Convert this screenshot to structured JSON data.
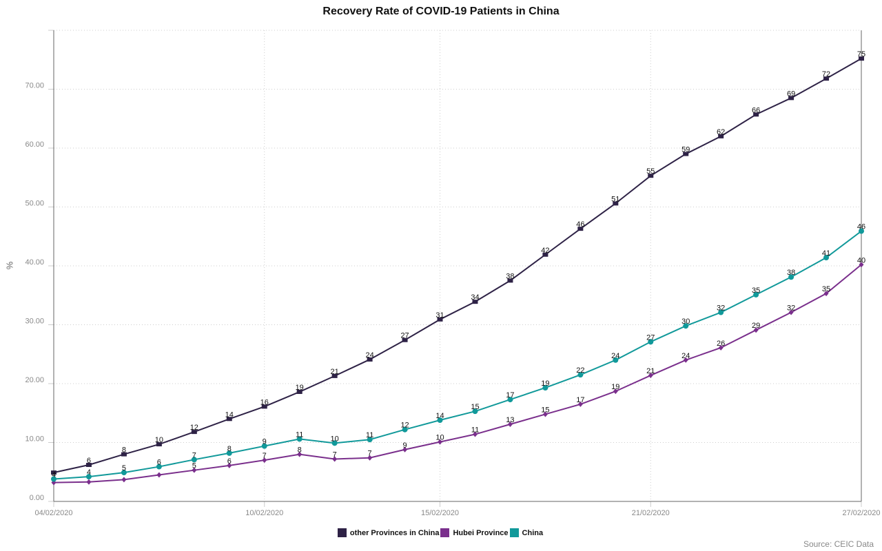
{
  "title": "Recovery Rate of COVID-19 Patients in China",
  "source": "Source: CEIC Data",
  "colors": {
    "other_provinces": "#2e2246",
    "hubei": "#7a2f8c",
    "china": "#11999a",
    "axis": "#666666",
    "grid": "#cccccc",
    "tick_text": "#888888"
  },
  "legend": [
    {
      "label": "other Provinces in China",
      "color": "#2e2246"
    },
    {
      "label": "Hubei Province",
      "color": "#7a2f8c"
    },
    {
      "label": "China",
      "color": "#11999a"
    }
  ],
  "chart_data": {
    "type": "line",
    "title": "Recovery Rate of COVID-19 Patients in China",
    "xlabel": "",
    "ylabel": "%",
    "ylim": [
      0,
      80
    ],
    "yticks": [
      "0.00",
      "10.00",
      "20.00",
      "30.00",
      "40.00",
      "50.00",
      "60.00",
      "70.00"
    ],
    "xtick_labels": [
      "04/02/2020",
      "10/02/2020",
      "15/02/2020",
      "21/02/2020",
      "27/02/2020"
    ],
    "xtick_indices": [
      0,
      6,
      11,
      17,
      23
    ],
    "grid": true,
    "legend_position": "bottom",
    "x": [
      "04/02/2020",
      "05/02/2020",
      "06/02/2020",
      "07/02/2020",
      "08/02/2020",
      "09/02/2020",
      "10/02/2020",
      "11/02/2020",
      "12/02/2020",
      "13/02/2020",
      "14/02/2020",
      "15/02/2020",
      "16/02/2020",
      "17/02/2020",
      "18/02/2020",
      "19/02/2020",
      "20/02/2020",
      "21/02/2020",
      "22/02/2020",
      "23/02/2020",
      "24/02/2020",
      "25/02/2020",
      "26/02/2020",
      "27/02/2020"
    ],
    "series": [
      {
        "name": "other Provinces in China",
        "marker": "square",
        "values": [
          4.9,
          6.2,
          8.0,
          9.7,
          11.8,
          14.0,
          16.1,
          18.6,
          21.3,
          24.1,
          27.4,
          30.9,
          33.9,
          37.5,
          41.9,
          46.3,
          50.6,
          55.3,
          59.0,
          62.0,
          65.7,
          68.5,
          71.8,
          75.2
        ],
        "labels": [
          "",
          "6",
          "8",
          "10",
          "12",
          "14",
          "16",
          "19",
          "21",
          "24",
          "27",
          "31",
          "34",
          "38",
          "42",
          "46",
          "51",
          "55",
          "59",
          "62",
          "66",
          "69",
          "72",
          "75"
        ]
      },
      {
        "name": "Hubei Province",
        "marker": "diamond",
        "values": [
          3.2,
          3.3,
          3.7,
          4.5,
          5.3,
          6.1,
          7.0,
          8.0,
          7.2,
          7.4,
          8.8,
          10.1,
          11.4,
          13.1,
          14.8,
          16.5,
          18.7,
          21.4,
          24.0,
          26.1,
          29.1,
          32.1,
          35.3,
          40.2
        ],
        "labels": [
          "",
          "",
          "",
          "",
          "5",
          "6",
          "7",
          "8",
          "7",
          "7",
          "9",
          "10",
          "11",
          "13",
          "15",
          "17",
          "19",
          "21",
          "24",
          "26",
          "29",
          "32",
          "35",
          "40"
        ]
      },
      {
        "name": "China",
        "marker": "circle",
        "values": [
          3.8,
          4.2,
          4.9,
          5.9,
          7.1,
          8.2,
          9.4,
          10.6,
          9.9,
          10.5,
          12.2,
          13.8,
          15.3,
          17.3,
          19.3,
          21.5,
          24.0,
          27.1,
          29.8,
          32.1,
          35.1,
          38.1,
          41.4,
          45.9
        ],
        "labels": [
          "4",
          "4",
          "5",
          "6",
          "7",
          "8",
          "9",
          "11",
          "10",
          "11",
          "12",
          "14",
          "15",
          "17",
          "19",
          "22",
          "24",
          "27",
          "30",
          "32",
          "35",
          "38",
          "41",
          "46"
        ]
      }
    ]
  }
}
